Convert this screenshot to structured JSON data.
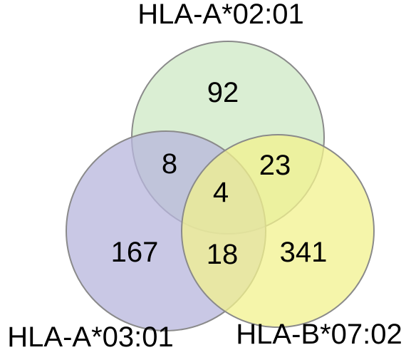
{
  "diagram": {
    "type": "venn-3",
    "sets": [
      {
        "key": "a0201",
        "label": "HLA-A*02:01",
        "fill": "#cde8c4",
        "stroke": "#8a8a8a"
      },
      {
        "key": "a0301",
        "label": "HLA-A*03:01",
        "fill": "#b7b6dc",
        "stroke": "#8a8a8a"
      },
      {
        "key": "b0702",
        "label": "HLA-B*07:02",
        "fill": "#f1f28e",
        "stroke": "#8a8a8a"
      }
    ],
    "regions": {
      "a0201_only": "92",
      "a0301_only": "167",
      "b0702_only": "341",
      "a0201_a0301": "8",
      "a0201_b0702": "23",
      "a0301_b0702": "18",
      "all_three": "4"
    }
  }
}
